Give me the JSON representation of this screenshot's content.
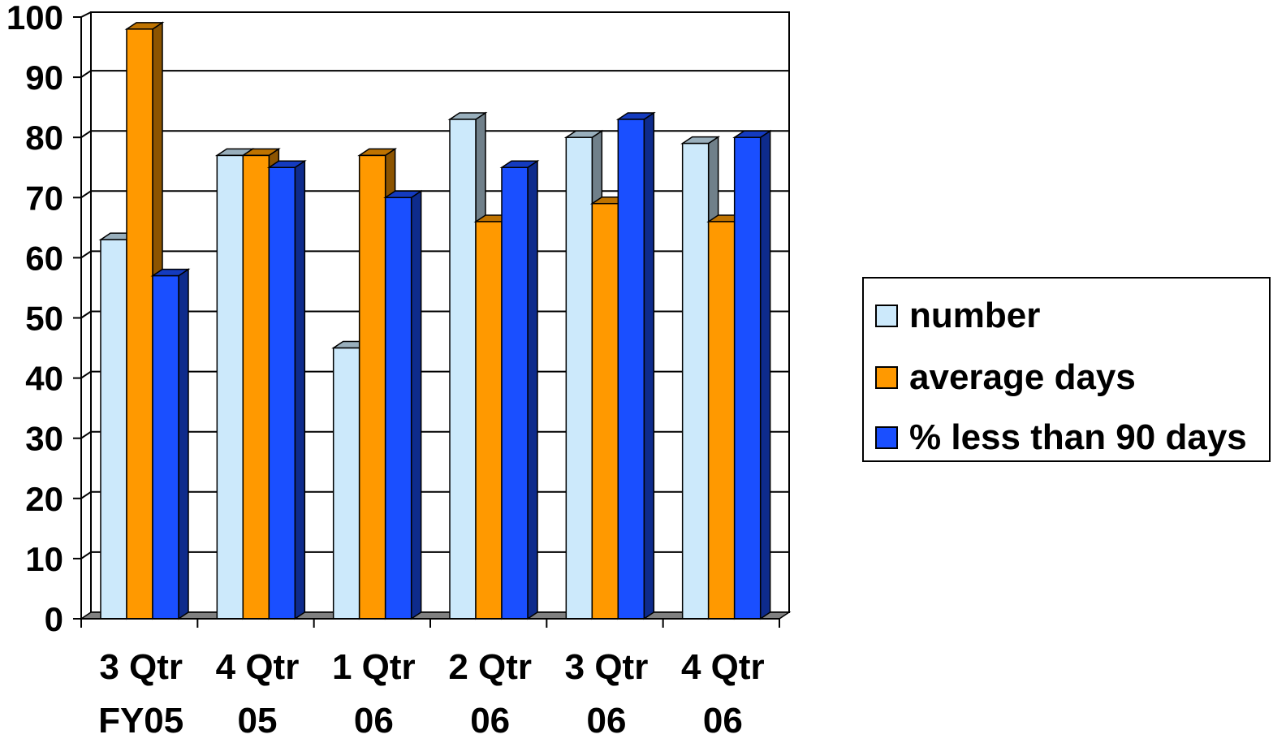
{
  "chart_data": {
    "type": "bar",
    "title": "",
    "xlabel": "",
    "ylabel": "",
    "ylim": [
      0,
      100
    ],
    "yticks": [
      0,
      10,
      20,
      30,
      40,
      50,
      60,
      70,
      80,
      90,
      100
    ],
    "grid": true,
    "legend_position": "right",
    "categories": [
      [
        "3 Qtr",
        "FY05"
      ],
      [
        "4 Qtr",
        "05"
      ],
      [
        "1 Qtr",
        "06"
      ],
      [
        "2 Qtr",
        "06"
      ],
      [
        "3 Qtr",
        "06"
      ],
      [
        "4 Qtr",
        "06"
      ]
    ],
    "series": [
      {
        "name": "number",
        "color": "#cce9fb",
        "values": [
          63,
          77,
          45,
          83,
          80,
          79
        ]
      },
      {
        "name": "average days",
        "color": "#ff9900",
        "values": [
          98,
          77,
          77,
          66,
          69,
          66
        ]
      },
      {
        "name": "% less than 90 days",
        "color": "#1a4fff",
        "values": [
          57,
          75,
          70,
          75,
          83,
          80
        ]
      }
    ]
  }
}
